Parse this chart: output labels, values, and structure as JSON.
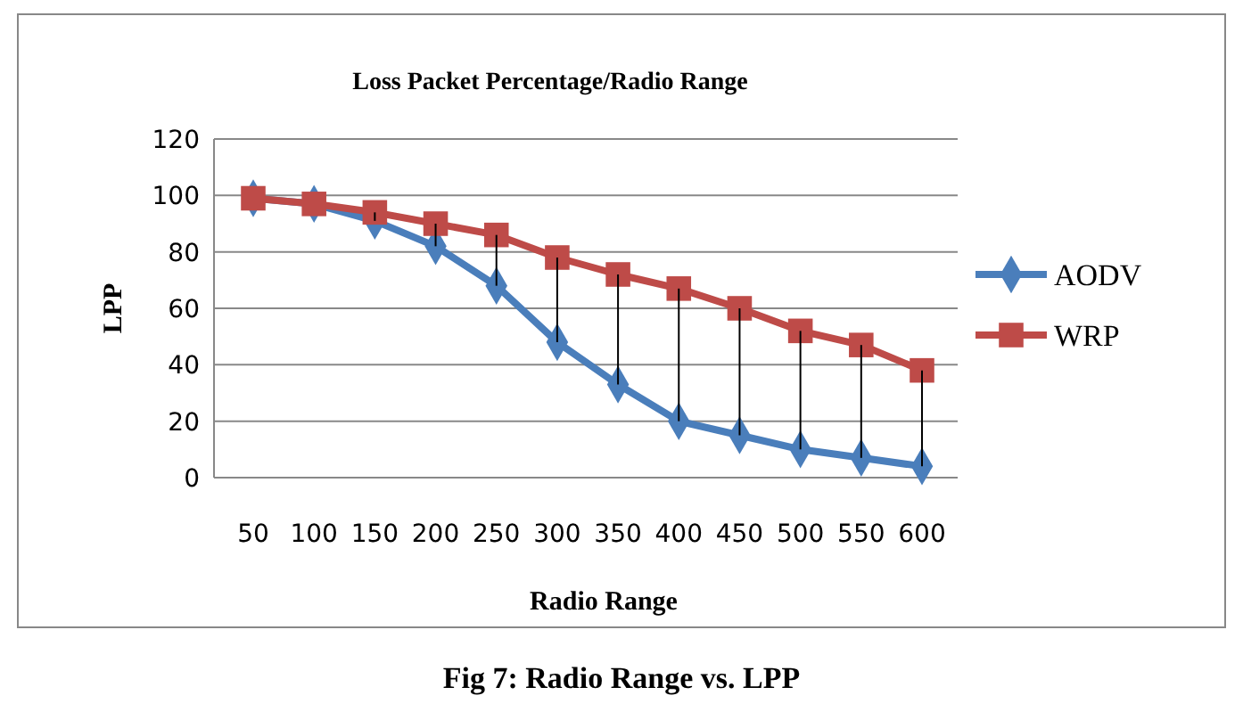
{
  "chart_data": {
    "type": "line",
    "title": "Loss Packet Percentage/Radio Range",
    "xlabel": "Radio Range",
    "ylabel": "LPP",
    "categories": [
      "50",
      "100",
      "150",
      "200",
      "250",
      "300",
      "350",
      "400",
      "450",
      "500",
      "550",
      "600"
    ],
    "series": [
      {
        "name": "AODV",
        "color": "#4a7ebb",
        "marker": "diamond",
        "values": [
          99,
          97,
          91,
          82,
          68,
          48,
          33,
          20,
          15,
          10,
          7,
          4
        ],
        "errors": [
          null,
          null,
          [
            91,
            94
          ],
          [
            82,
            90
          ],
          [
            68,
            86
          ],
          [
            48,
            78
          ],
          [
            33,
            72
          ],
          [
            20,
            67
          ],
          [
            15,
            60
          ],
          [
            10,
            52
          ],
          [
            7,
            47
          ],
          [
            4,
            38
          ]
        ]
      },
      {
        "name": "WRP",
        "color": "#be4b48",
        "marker": "square",
        "values": [
          99,
          97,
          94,
          90,
          86,
          78,
          72,
          67,
          60,
          52,
          47,
          38
        ]
      }
    ],
    "ylim": [
      0,
      120
    ],
    "yticks": [
      0,
      20,
      40,
      60,
      80,
      100,
      120
    ],
    "grid": "y",
    "legend": "right",
    "annotations": [
      "Fig 7: Radio Range vs. LPP"
    ]
  }
}
